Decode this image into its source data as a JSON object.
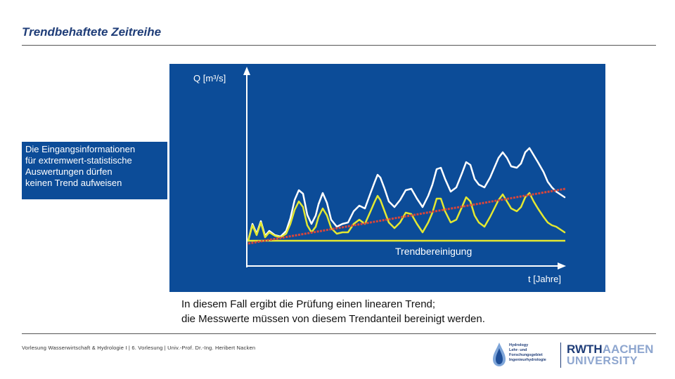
{
  "slide": {
    "title": "Trendbehaftete Zeitreihe"
  },
  "chart": {
    "y_axis_label": "Q  [m³/s]",
    "x_axis_label": "t [Jahre]",
    "trend_removed_label": "Trendbereinigung",
    "colors": {
      "background": "#0c4c98",
      "original_series": "#ffffff",
      "detrended_series": "#e3e831",
      "trend_line": "#d9463a",
      "baseline": "#e3e831"
    }
  },
  "infobox": {
    "lines": [
      "Die Eingangsinformationen",
      "für extremwert-statistische",
      "Auswertungen dürfen",
      "keinen Trend aufweisen"
    ]
  },
  "conclusion": {
    "line1": "In diesem Fall ergibt die Prüfung einen linearen Trend;",
    "line2": "die Messwerte müssen von diesem Trendanteil bereinigt werden."
  },
  "footer": {
    "text": "Vorlesung Wasserwirtschaft & Hydrologie I | 6. Vorlesung | Univ.-Prof. Dr.-Ing. Heribert Nacken"
  },
  "logos": {
    "hydro": {
      "icon": "water-drop-icon",
      "lines": [
        "Hydrology",
        "Lehr- und",
        "Forschungsgebiet",
        "Ingenieurhydrologie"
      ]
    },
    "rwth": {
      "part1": "RWTH",
      "part2": "AACHEN",
      "line2": "UNIVERSITY"
    }
  }
}
